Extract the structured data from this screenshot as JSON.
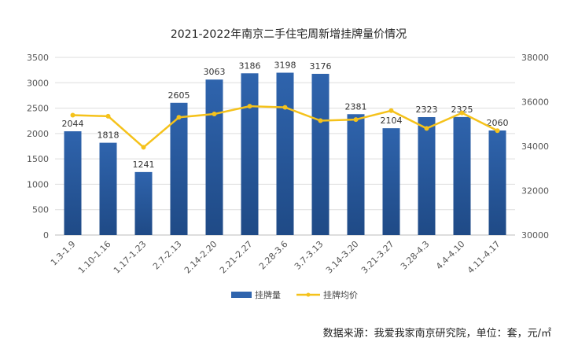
{
  "title": "2021-2022年南京二手住宅周新增挂牌量价情况",
  "source": "数据来源：我爱我家南京研究院，单位：套，元/㎡",
  "colors": {
    "bar": "#2f64ad",
    "bar_dark": "#1f4a86",
    "line": "#f5c21b",
    "grid": "#dddddd"
  },
  "chart_data": {
    "type": "bar",
    "categories": [
      "1.3-1.9",
      "1.10-1.16",
      "1.17-1.23",
      "2.7-2.13",
      "2.14-2.20",
      "2.21-2.27",
      "2.28-3.6",
      "3.7-3.13",
      "3.14-3.20",
      "3.21-3.27",
      "3.28-4.3",
      "4.4-4.10",
      "4.11-4.17"
    ],
    "series": [
      {
        "name": "挂牌量",
        "type": "bar",
        "axis": "left",
        "values": [
          2044,
          1818,
          1241,
          2605,
          3063,
          3186,
          3198,
          3176,
          2381,
          2104,
          2323,
          2325,
          2060
        ]
      },
      {
        "name": "挂牌均价",
        "type": "line",
        "axis": "right",
        "values": [
          35400,
          35350,
          33950,
          35300,
          35450,
          35800,
          35750,
          35150,
          35200,
          35600,
          34800,
          35500,
          34700
        ]
      }
    ],
    "y_left": {
      "min": 0,
      "max": 3500,
      "ticks": [
        0,
        500,
        1000,
        1500,
        2000,
        2500,
        3000,
        3500
      ]
    },
    "y_right": {
      "min": 30000,
      "max": 38000,
      "ticks": [
        30000,
        32000,
        34000,
        36000,
        38000
      ]
    },
    "grid": true,
    "legend": "bottom"
  }
}
